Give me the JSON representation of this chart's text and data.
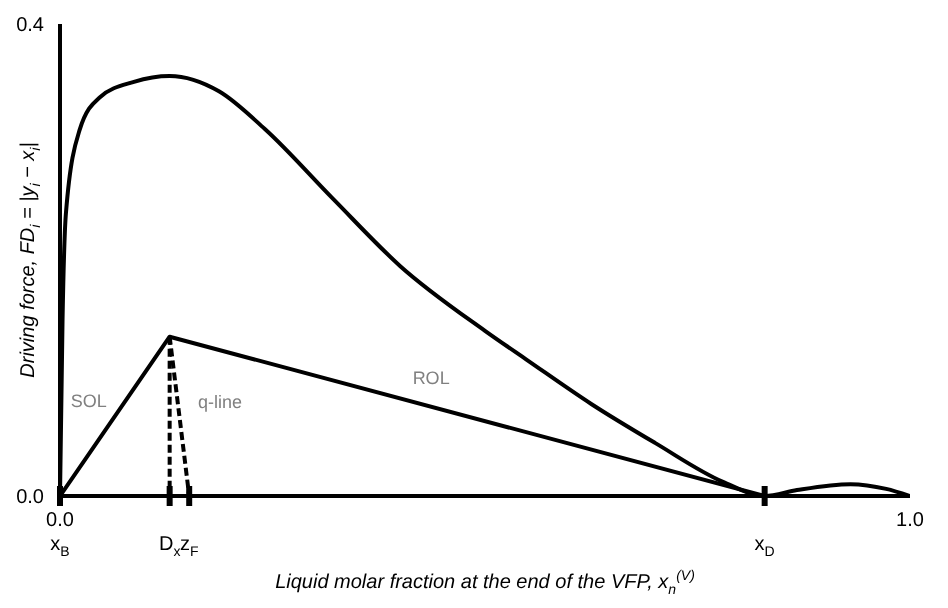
{
  "chart_data": {
    "type": "line",
    "xlabel": "Liquid molar fraction at the end of the VFP, x$_{n}$$^{(V)}$",
    "ylabel": "Driving force, FD$_{i}$ = |y$_{i}$ − x$_{i}$|",
    "xlim": [
      0,
      1
    ],
    "xticks": [
      {
        "value": 0,
        "label": "0.0"
      },
      {
        "value": 1,
        "label": "1.0"
      }
    ],
    "ylim": [
      0,
      0.4
    ],
    "yticks": [
      {
        "value": 0,
        "label": "0.0"
      },
      {
        "value": 0.4,
        "label": "0.4"
      }
    ],
    "marker": "none",
    "series": [
      {
        "color": "#000000",
        "line_style": "solid",
        "x": [
          0,
          0.003,
          0.007,
          0.023,
          0.047,
          0.087,
          0.129,
          0.187,
          0.241,
          0.321,
          0.4,
          0.5,
          0.55,
          0.625,
          0.7,
          0.78,
          0.829,
          0.867,
          0.93,
          0.972,
          1
        ],
        "values": [
          0,
          0.15,
          0.24,
          0.31,
          0.338,
          0.351,
          0.356,
          0.343,
          0.311,
          0.252,
          0.195,
          0.14,
          0.115,
          0.078,
          0.045,
          0.012,
          0,
          0.005,
          0.01,
          0.006,
          0
        ]
      },
      {
        "color": "#000000",
        "line_style": "solid",
        "x": [
          0,
          0.129,
          0.829
        ],
        "values": [
          0,
          0.135,
          0
        ]
      },
      {
        "color": "#000000",
        "line_style": "dashed",
        "x": [
          0.129,
          0.129
        ],
        "values": [
          0.135,
          0
        ]
      },
      {
        "color": "#000000",
        "line_style": "dashed",
        "x": [
          0.129,
          0.152
        ],
        "values": [
          0.135,
          0
        ]
      }
    ],
    "annotations": [
      {
        "text": "x$_{B}$",
        "x": 0,
        "y": 0
      },
      {
        "text": "D$_{x}$",
        "x": 0.129,
        "y": 0
      },
      {
        "text": "z$_{F}$",
        "x": 0.152,
        "y": 0
      },
      {
        "text": "x$_{D}$",
        "x": 0.829,
        "y": 0
      },
      {
        "text": "SOL",
        "x": 0.06,
        "y": 0.0628
      },
      {
        "text": "q-line",
        "x": 0.14,
        "y": 0.07
      },
      {
        "text": "ROL",
        "x": 0.43,
        "y": 0.077
      }
    ]
  }
}
